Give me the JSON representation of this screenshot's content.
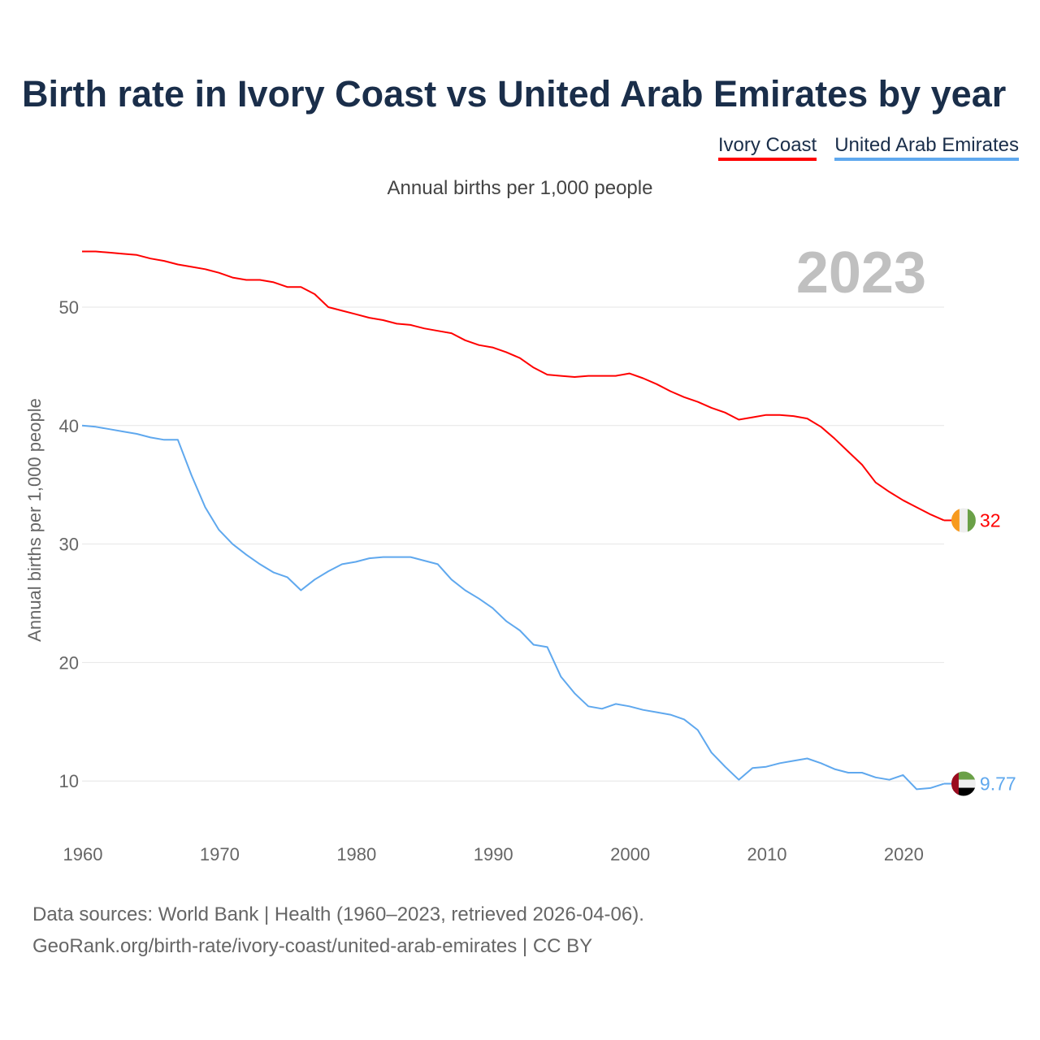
{
  "chart_data": {
    "type": "line",
    "title": "Birth rate in Ivory Coast vs United Arab Emirates by year",
    "subtitle": "Annual births per 1,000 people",
    "ylabel": "Annual births per 1,000 people",
    "xlabel": "",
    "year_label": "2023",
    "xlim": [
      1960,
      2023
    ],
    "ylim": [
      5,
      55
    ],
    "x_ticks": [
      1960,
      1970,
      1980,
      1990,
      2000,
      2010,
      2020
    ],
    "y_ticks": [
      10,
      20,
      30,
      40,
      50
    ],
    "grid": true,
    "legend_position": "top-right",
    "x_start": 1960,
    "series": [
      {
        "name": "Ivory Coast",
        "color": "#ff0000",
        "end_label": "32",
        "values": [
          54.7,
          54.7,
          54.6,
          54.5,
          54.4,
          54.1,
          53.9,
          53.6,
          53.4,
          53.2,
          52.9,
          52.5,
          52.3,
          52.3,
          52.1,
          51.7,
          51.7,
          51.1,
          50.0,
          49.7,
          49.4,
          49.1,
          48.9,
          48.6,
          48.5,
          48.2,
          48.0,
          47.8,
          47.2,
          46.8,
          46.6,
          46.2,
          45.7,
          44.9,
          44.3,
          44.2,
          44.1,
          44.2,
          44.2,
          44.2,
          44.4,
          44.0,
          43.5,
          42.9,
          42.4,
          42.0,
          41.5,
          41.1,
          40.5,
          40.7,
          40.9,
          40.9,
          40.8,
          40.6,
          39.9,
          38.9,
          37.8,
          36.7,
          35.2,
          34.4,
          33.7,
          33.1,
          32.5,
          32.0
        ]
      },
      {
        "name": "United Arab Emirates",
        "color": "#5fa8ee",
        "end_label": "9.77",
        "values": [
          40.0,
          39.9,
          39.7,
          39.5,
          39.3,
          39.0,
          38.8,
          38.8,
          35.8,
          33.1,
          31.2,
          30.0,
          29.1,
          28.3,
          27.6,
          27.2,
          26.1,
          27.0,
          27.7,
          28.3,
          28.5,
          28.8,
          28.9,
          28.9,
          28.9,
          28.6,
          28.3,
          27.0,
          26.1,
          25.4,
          24.6,
          23.5,
          22.7,
          21.5,
          21.3,
          18.8,
          17.4,
          16.3,
          16.1,
          16.5,
          16.3,
          16.0,
          15.8,
          15.6,
          15.2,
          14.3,
          12.4,
          11.2,
          10.1,
          11.1,
          11.2,
          11.5,
          11.7,
          11.9,
          11.5,
          11.0,
          10.7,
          10.7,
          10.3,
          10.1,
          10.5,
          9.3,
          9.4,
          9.77
        ]
      }
    ]
  },
  "footer": {
    "line1": "Data sources: World Bank | Health (1960–2023, retrieved 2026-04-06).",
    "line2": "GeoRank.org/birth-rate/ivory-coast/united-arab-emirates | CC BY"
  }
}
